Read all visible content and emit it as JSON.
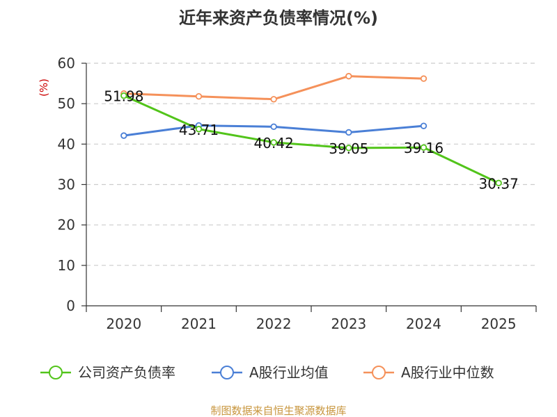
{
  "chart_data": {
    "type": "line",
    "title": "近年来资产负债率情况(%)",
    "ylabel": "(%)",
    "xlabel": "",
    "categories": [
      "2020",
      "2021",
      "2022",
      "2023",
      "2024",
      "2025"
    ],
    "ylim": [
      0,
      60
    ],
    "yticks": [
      0,
      10,
      20,
      30,
      40,
      50,
      60
    ],
    "grid": "horizontal-dashed",
    "legend_position": "bottom",
    "series": [
      {
        "name": "公司资产负债率",
        "color": "#52c41a",
        "values": [
          51.98,
          43.71,
          40.42,
          39.05,
          39.16,
          30.37
        ],
        "labels": [
          "51.98",
          "43.71",
          "40.42",
          "39.05",
          "39.16",
          "30.37"
        ]
      },
      {
        "name": "A股行业均值",
        "color": "#4a7fd6",
        "values": [
          42.1,
          44.6,
          44.3,
          42.9,
          44.5,
          null
        ]
      },
      {
        "name": "A股行业中位数",
        "color": "#f5915a",
        "values": [
          52.5,
          51.8,
          51.1,
          56.8,
          56.2,
          null
        ]
      }
    ]
  },
  "source": "制图数据来自恒生聚源数据库"
}
